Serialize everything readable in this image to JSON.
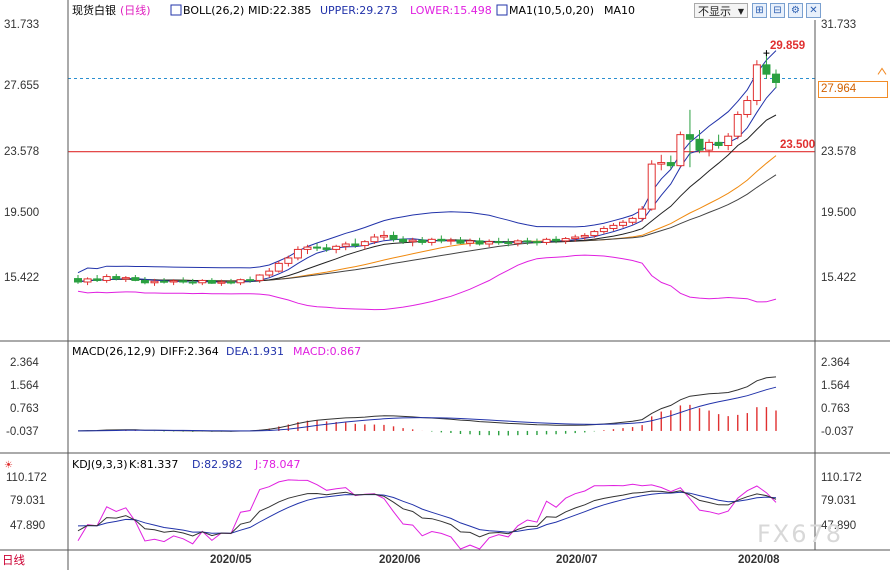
{
  "header": {
    "instrument": "现货白银",
    "period_link": "(日线)",
    "boll_label": "BOLL(26,2)",
    "mid_text": "MID:22.385",
    "upper_text": "UPPER:29.273",
    "lower_text": "LOWER:15.498",
    "ma_label": "MA1(10,5,0,20)",
    "ma10_label": "MA10",
    "dropdown_value": "不显示"
  },
  "price_panel": {
    "y_ticks": [
      "31.733",
      "27.655",
      "23.578",
      "19.500",
      "15.422"
    ],
    "high_marker": "29.859",
    "h_line_label": "23.500",
    "last_price": "27.964"
  },
  "macd_panel": {
    "label": "MACD(26,12,9)",
    "diff_text": "DIFF:2.364",
    "dea_text": "DEA:1.931",
    "macd_text": "MACD:0.867",
    "y_ticks": [
      "2.364",
      "1.564",
      "0.763",
      "-0.037"
    ]
  },
  "kdj_panel": {
    "label": "KDJ(9,3,3)",
    "k_text": "K:81.337",
    "d_text": "D:82.982",
    "j_text": "J:78.047",
    "y_ticks": [
      "110.172",
      "79.031",
      "47.890"
    ]
  },
  "x_axis": {
    "ticks": [
      "2020/05",
      "2020/06",
      "2020/07",
      "2020/08"
    ]
  },
  "period_tab": "日线",
  "watermark": "FX678",
  "colors": {
    "up": "#e03030",
    "down": "#2aa040",
    "boll": "#2233aa",
    "lower": "#e020e0",
    "ma_orange": "#f08a10",
    "ma_black": "#222222"
  },
  "chart_data": {
    "type": "candlestick",
    "title": "现货白银 (日线)",
    "y_range": [
      14.0,
      32.0
    ],
    "candles": [
      {
        "o": 15.32,
        "h": 15.55,
        "l": 14.98,
        "c": 15.1
      },
      {
        "o": 15.1,
        "h": 15.4,
        "l": 14.9,
        "c": 15.3
      },
      {
        "o": 15.3,
        "h": 15.55,
        "l": 15.1,
        "c": 15.2
      },
      {
        "o": 15.2,
        "h": 15.6,
        "l": 15.05,
        "c": 15.45
      },
      {
        "o": 15.45,
        "h": 15.62,
        "l": 15.2,
        "c": 15.3
      },
      {
        "o": 15.3,
        "h": 15.48,
        "l": 15.1,
        "c": 15.38
      },
      {
        "o": 15.38,
        "h": 15.55,
        "l": 15.15,
        "c": 15.2
      },
      {
        "o": 15.2,
        "h": 15.42,
        "l": 14.95,
        "c": 15.05
      },
      {
        "o": 15.05,
        "h": 15.3,
        "l": 14.85,
        "c": 15.15
      },
      {
        "o": 15.15,
        "h": 15.35,
        "l": 15.0,
        "c": 15.1
      },
      {
        "o": 15.1,
        "h": 15.28,
        "l": 14.9,
        "c": 15.18
      },
      {
        "o": 15.18,
        "h": 15.4,
        "l": 15.0,
        "c": 15.1
      },
      {
        "o": 15.1,
        "h": 15.3,
        "l": 14.92,
        "c": 15.05
      },
      {
        "o": 15.05,
        "h": 15.28,
        "l": 14.9,
        "c": 15.2
      },
      {
        "o": 15.2,
        "h": 15.35,
        "l": 14.98,
        "c": 15.02
      },
      {
        "o": 15.02,
        "h": 15.25,
        "l": 14.85,
        "c": 15.1
      },
      {
        "o": 15.1,
        "h": 15.3,
        "l": 14.95,
        "c": 15.05
      },
      {
        "o": 15.05,
        "h": 15.32,
        "l": 14.9,
        "c": 15.25
      },
      {
        "o": 15.25,
        "h": 15.45,
        "l": 15.05,
        "c": 15.2
      },
      {
        "o": 15.2,
        "h": 15.6,
        "l": 15.05,
        "c": 15.55
      },
      {
        "o": 15.55,
        "h": 16.0,
        "l": 15.4,
        "c": 15.8
      },
      {
        "o": 15.8,
        "h": 16.45,
        "l": 15.7,
        "c": 16.3
      },
      {
        "o": 16.3,
        "h": 16.8,
        "l": 16.1,
        "c": 16.65
      },
      {
        "o": 16.65,
        "h": 17.4,
        "l": 16.5,
        "c": 17.2
      },
      {
        "o": 17.2,
        "h": 17.5,
        "l": 16.9,
        "c": 17.35
      },
      {
        "o": 17.35,
        "h": 17.6,
        "l": 17.1,
        "c": 17.3
      },
      {
        "o": 17.3,
        "h": 17.55,
        "l": 17.05,
        "c": 17.2
      },
      {
        "o": 17.2,
        "h": 17.5,
        "l": 16.95,
        "c": 17.4
      },
      {
        "o": 17.4,
        "h": 17.7,
        "l": 17.15,
        "c": 17.55
      },
      {
        "o": 17.55,
        "h": 17.9,
        "l": 17.3,
        "c": 17.45
      },
      {
        "o": 17.45,
        "h": 17.8,
        "l": 17.2,
        "c": 17.7
      },
      {
        "o": 17.7,
        "h": 18.2,
        "l": 17.55,
        "c": 18.0
      },
      {
        "o": 18.0,
        "h": 18.4,
        "l": 17.8,
        "c": 18.1
      },
      {
        "o": 18.1,
        "h": 18.35,
        "l": 17.7,
        "c": 17.85
      },
      {
        "o": 17.85,
        "h": 18.05,
        "l": 17.55,
        "c": 17.7
      },
      {
        "o": 17.7,
        "h": 17.95,
        "l": 17.4,
        "c": 17.8
      },
      {
        "o": 17.8,
        "h": 18.0,
        "l": 17.5,
        "c": 17.65
      },
      {
        "o": 17.65,
        "h": 17.95,
        "l": 17.45,
        "c": 17.85
      },
      {
        "o": 17.85,
        "h": 18.1,
        "l": 17.6,
        "c": 17.75
      },
      {
        "o": 17.75,
        "h": 17.95,
        "l": 17.5,
        "c": 17.8
      },
      {
        "o": 17.8,
        "h": 18.0,
        "l": 17.55,
        "c": 17.6
      },
      {
        "o": 17.6,
        "h": 17.9,
        "l": 17.4,
        "c": 17.75
      },
      {
        "o": 17.75,
        "h": 17.95,
        "l": 17.45,
        "c": 17.55
      },
      {
        "o": 17.55,
        "h": 17.85,
        "l": 17.35,
        "c": 17.7
      },
      {
        "o": 17.7,
        "h": 17.95,
        "l": 17.5,
        "c": 17.65
      },
      {
        "o": 17.65,
        "h": 17.9,
        "l": 17.4,
        "c": 17.6
      },
      {
        "o": 17.6,
        "h": 17.85,
        "l": 17.4,
        "c": 17.75
      },
      {
        "o": 17.75,
        "h": 17.95,
        "l": 17.5,
        "c": 17.7
      },
      {
        "o": 17.7,
        "h": 17.9,
        "l": 17.45,
        "c": 17.65
      },
      {
        "o": 17.65,
        "h": 17.95,
        "l": 17.5,
        "c": 17.85
      },
      {
        "o": 17.85,
        "h": 18.05,
        "l": 17.6,
        "c": 17.75
      },
      {
        "o": 17.75,
        "h": 18.0,
        "l": 17.55,
        "c": 17.9
      },
      {
        "o": 17.9,
        "h": 18.15,
        "l": 17.7,
        "c": 18.0
      },
      {
        "o": 18.0,
        "h": 18.25,
        "l": 17.8,
        "c": 18.1
      },
      {
        "o": 18.1,
        "h": 18.45,
        "l": 17.95,
        "c": 18.35
      },
      {
        "o": 18.35,
        "h": 18.7,
        "l": 18.2,
        "c": 18.55
      },
      {
        "o": 18.55,
        "h": 18.9,
        "l": 18.4,
        "c": 18.75
      },
      {
        "o": 18.75,
        "h": 19.1,
        "l": 18.6,
        "c": 18.95
      },
      {
        "o": 18.95,
        "h": 19.3,
        "l": 18.8,
        "c": 19.2
      },
      {
        "o": 19.2,
        "h": 20.0,
        "l": 19.0,
        "c": 19.8
      },
      {
        "o": 19.8,
        "h": 22.95,
        "l": 19.7,
        "c": 22.7
      },
      {
        "o": 22.7,
        "h": 23.3,
        "l": 22.3,
        "c": 22.8
      },
      {
        "o": 22.8,
        "h": 23.25,
        "l": 22.4,
        "c": 22.6
      },
      {
        "o": 22.6,
        "h": 24.8,
        "l": 22.5,
        "c": 24.6
      },
      {
        "o": 24.6,
        "h": 26.2,
        "l": 22.5,
        "c": 24.3
      },
      {
        "o": 24.3,
        "h": 24.9,
        "l": 23.4,
        "c": 23.6
      },
      {
        "o": 23.6,
        "h": 24.3,
        "l": 23.2,
        "c": 24.1
      },
      {
        "o": 24.1,
        "h": 24.6,
        "l": 23.7,
        "c": 23.9
      },
      {
        "o": 23.9,
        "h": 24.7,
        "l": 23.6,
        "c": 24.5
      },
      {
        "o": 24.5,
        "h": 26.1,
        "l": 24.3,
        "c": 25.9
      },
      {
        "o": 25.9,
        "h": 27.1,
        "l": 25.7,
        "c": 26.8
      },
      {
        "o": 26.8,
        "h": 29.4,
        "l": 26.5,
        "c": 29.1
      },
      {
        "o": 29.1,
        "h": 29.859,
        "l": 28.2,
        "c": 28.5
      },
      {
        "o": 28.5,
        "h": 28.8,
        "l": 27.6,
        "c": 27.964
      }
    ]
  }
}
